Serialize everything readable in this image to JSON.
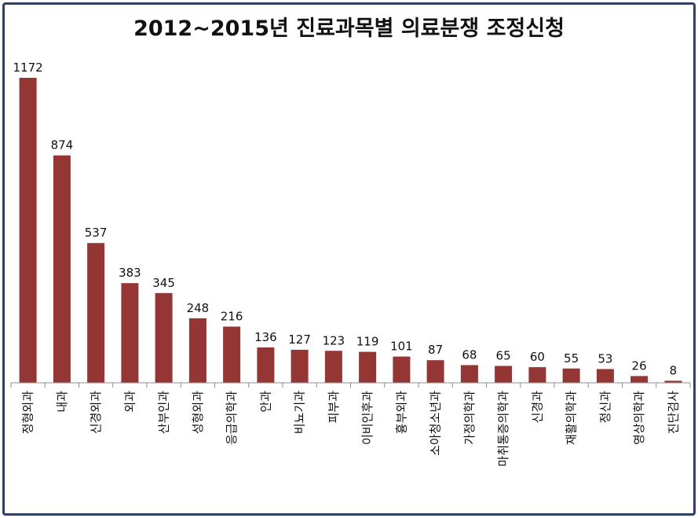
{
  "chart_data": {
    "type": "bar",
    "title": "2012~2015년 진료과목별 의료분쟁 조정신청",
    "categories": [
      "정형외과",
      "내과",
      "신경외과",
      "외과",
      "산부인과",
      "성형외과",
      "응급의학과",
      "안과",
      "비뇨기과",
      "피부과",
      "이비인후과",
      "흉부외과",
      "소아청소년과",
      "가정의학과",
      "마취통증의학과",
      "신경과",
      "재활의학과",
      "정신과",
      "영상의학과",
      "진단검사"
    ],
    "values": [
      1172,
      874,
      537,
      383,
      345,
      248,
      216,
      136,
      127,
      123,
      119,
      101,
      87,
      68,
      65,
      60,
      55,
      53,
      26,
      8
    ],
    "color": "#943634",
    "grid": false,
    "legend": "none"
  }
}
